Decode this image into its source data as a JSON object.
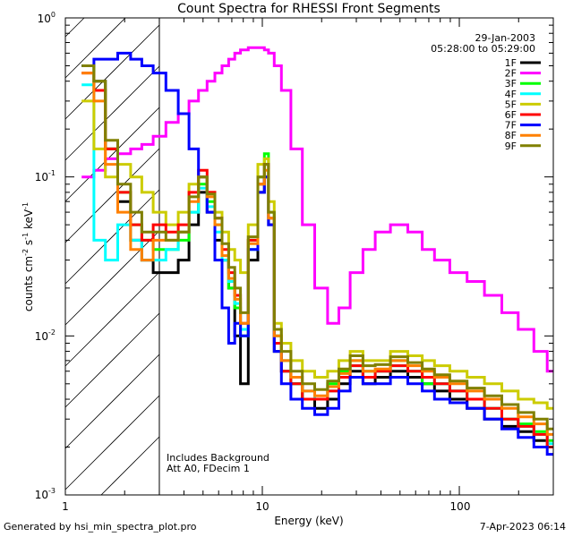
{
  "chart_data": {
    "type": "line",
    "title": "Count Spectra for RHESSI Front Segments",
    "xlabel": "Energy (keV)",
    "ylabel": "counts cm-2 s-1 keV-1",
    "xscale": "log",
    "yscale": "log",
    "xlim": [
      1,
      300
    ],
    "ylim": [
      0.001,
      1
    ],
    "x_tick_labels": [
      "1",
      "10",
      "100"
    ],
    "y_tick_labels": [
      "10-3",
      "10-2",
      "10-1",
      "100"
    ],
    "date": "29-Jan-2003",
    "time_range": "05:28:00 to 05:29:00",
    "annotation_lines": [
      "Includes Background",
      "Att A0, FDecim 1"
    ],
    "hatched_region": [
      1,
      3
    ],
    "energies": [
      1.3,
      1.5,
      1.7,
      2.0,
      2.3,
      2.6,
      3.0,
      3.5,
      4.0,
      4.5,
      5.0,
      5.5,
      6.0,
      6.5,
      7.0,
      7.5,
      8.0,
      9.0,
      10.0,
      10.5,
      11.0,
      12.0,
      13.0,
      15.0,
      17.0,
      20.0,
      23.0,
      26.0,
      30.0,
      35.0,
      40.0,
      50.0,
      60.0,
      70.0,
      80.0,
      100.0,
      120.0,
      150.0,
      180.0,
      220.0,
      260.0,
      300.0
    ],
    "series": [
      {
        "name": "1F",
        "color": "#000000",
        "values": [
          0.5,
          0.4,
          0.15,
          0.07,
          0.04,
          0.03,
          0.025,
          0.025,
          0.03,
          0.05,
          0.08,
          0.06,
          0.04,
          0.03,
          0.02,
          0.01,
          0.005,
          0.03,
          0.08,
          0.1,
          0.05,
          0.008,
          0.006,
          0.005,
          0.004,
          0.0035,
          0.004,
          0.005,
          0.006,
          0.005,
          0.0055,
          0.006,
          0.0055,
          0.005,
          0.0045,
          0.004,
          0.0035,
          0.003,
          0.0027,
          0.0025,
          0.0022,
          0.002
        ]
      },
      {
        "name": "2F",
        "color": "#ff00ff",
        "values": [
          0.1,
          0.11,
          0.13,
          0.14,
          0.15,
          0.16,
          0.18,
          0.22,
          0.25,
          0.3,
          0.35,
          0.4,
          0.45,
          0.5,
          0.55,
          0.6,
          0.63,
          0.65,
          0.65,
          0.63,
          0.6,
          0.5,
          0.35,
          0.15,
          0.05,
          0.02,
          0.012,
          0.015,
          0.025,
          0.035,
          0.045,
          0.05,
          0.045,
          0.035,
          0.03,
          0.025,
          0.022,
          0.018,
          0.014,
          0.011,
          0.008,
          0.006
        ]
      },
      {
        "name": "3F",
        "color": "#00ff00",
        "values": [
          0.5,
          0.35,
          0.15,
          0.08,
          0.05,
          0.04,
          0.035,
          0.035,
          0.04,
          0.06,
          0.09,
          0.07,
          0.05,
          0.03,
          0.02,
          0.015,
          0.01,
          0.04,
          0.1,
          0.14,
          0.06,
          0.01,
          0.007,
          0.005,
          0.004,
          0.004,
          0.005,
          0.006,
          0.007,
          0.006,
          0.006,
          0.007,
          0.006,
          0.005,
          0.005,
          0.0045,
          0.004,
          0.0035,
          0.003,
          0.0028,
          0.0025,
          0.0022
        ]
      },
      {
        "name": "4F",
        "color": "#00ffff",
        "values": [
          0.38,
          0.04,
          0.03,
          0.05,
          0.04,
          0.03,
          0.03,
          0.035,
          0.045,
          0.06,
          0.085,
          0.065,
          0.045,
          0.03,
          0.022,
          0.016,
          0.011,
          0.035,
          0.09,
          0.12,
          0.055,
          0.009,
          0.006,
          0.005,
          0.0045,
          0.004,
          0.0045,
          0.0055,
          0.0065,
          0.0055,
          0.006,
          0.0065,
          0.006,
          0.0055,
          0.005,
          0.0045,
          0.004,
          0.0035,
          0.003,
          0.0027,
          0.0024,
          0.0021
        ]
      },
      {
        "name": "5F",
        "color": "#cccc00",
        "values": [
          0.3,
          0.15,
          0.1,
          0.12,
          0.1,
          0.08,
          0.06,
          0.05,
          0.06,
          0.09,
          0.1,
          0.08,
          0.06,
          0.045,
          0.035,
          0.03,
          0.025,
          0.05,
          0.12,
          0.13,
          0.07,
          0.012,
          0.009,
          0.007,
          0.006,
          0.0055,
          0.006,
          0.007,
          0.008,
          0.007,
          0.007,
          0.008,
          0.0075,
          0.007,
          0.0065,
          0.006,
          0.0055,
          0.005,
          0.0045,
          0.004,
          0.0038,
          0.0035
        ]
      },
      {
        "name": "6F",
        "color": "#ff0000",
        "values": [
          0.45,
          0.35,
          0.15,
          0.08,
          0.05,
          0.04,
          0.05,
          0.045,
          0.05,
          0.08,
          0.11,
          0.08,
          0.055,
          0.035,
          0.025,
          0.018,
          0.012,
          0.04,
          0.09,
          0.12,
          0.055,
          0.009,
          0.006,
          0.005,
          0.004,
          0.004,
          0.0045,
          0.0055,
          0.0065,
          0.0055,
          0.006,
          0.0065,
          0.006,
          0.0055,
          0.005,
          0.0045,
          0.004,
          0.0035,
          0.003,
          0.0027,
          0.0024,
          0.002
        ]
      },
      {
        "name": "7F",
        "color": "#0000ff",
        "values": [
          0.5,
          0.55,
          0.55,
          0.6,
          0.55,
          0.5,
          0.45,
          0.35,
          0.25,
          0.15,
          0.1,
          0.06,
          0.03,
          0.015,
          0.009,
          0.012,
          0.01,
          0.035,
          0.08,
          0.1,
          0.05,
          0.008,
          0.005,
          0.004,
          0.0035,
          0.0032,
          0.0035,
          0.0045,
          0.0055,
          0.005,
          0.005,
          0.0055,
          0.005,
          0.0045,
          0.004,
          0.0038,
          0.0035,
          0.003,
          0.0026,
          0.0023,
          0.002,
          0.0018
        ]
      },
      {
        "name": "8F",
        "color": "#ff8000",
        "values": [
          0.45,
          0.3,
          0.12,
          0.06,
          0.035,
          0.03,
          0.04,
          0.04,
          0.045,
          0.07,
          0.1,
          0.075,
          0.05,
          0.032,
          0.023,
          0.017,
          0.012,
          0.038,
          0.09,
          0.11,
          0.055,
          0.01,
          0.007,
          0.0055,
          0.0045,
          0.0042,
          0.0048,
          0.0058,
          0.007,
          0.006,
          0.0062,
          0.007,
          0.0065,
          0.006,
          0.0055,
          0.005,
          0.0045,
          0.004,
          0.0035,
          0.0031,
          0.0028,
          0.0024
        ]
      },
      {
        "name": "9F",
        "color": "#808000",
        "values": [
          0.5,
          0.4,
          0.17,
          0.09,
          0.06,
          0.045,
          0.045,
          0.04,
          0.045,
          0.075,
          0.1,
          0.078,
          0.055,
          0.038,
          0.027,
          0.02,
          0.014,
          0.042,
          0.1,
          0.12,
          0.06,
          0.011,
          0.008,
          0.006,
          0.005,
          0.0046,
          0.0052,
          0.0062,
          0.0075,
          0.0065,
          0.0066,
          0.0074,
          0.0068,
          0.0062,
          0.0057,
          0.0052,
          0.0047,
          0.0042,
          0.0037,
          0.0033,
          0.003,
          0.0026
        ]
      }
    ]
  },
  "footer": {
    "generated_by": "Generated by hsi_min_spectra_plot.pro",
    "timestamp": "7-Apr-2023 06:14"
  }
}
